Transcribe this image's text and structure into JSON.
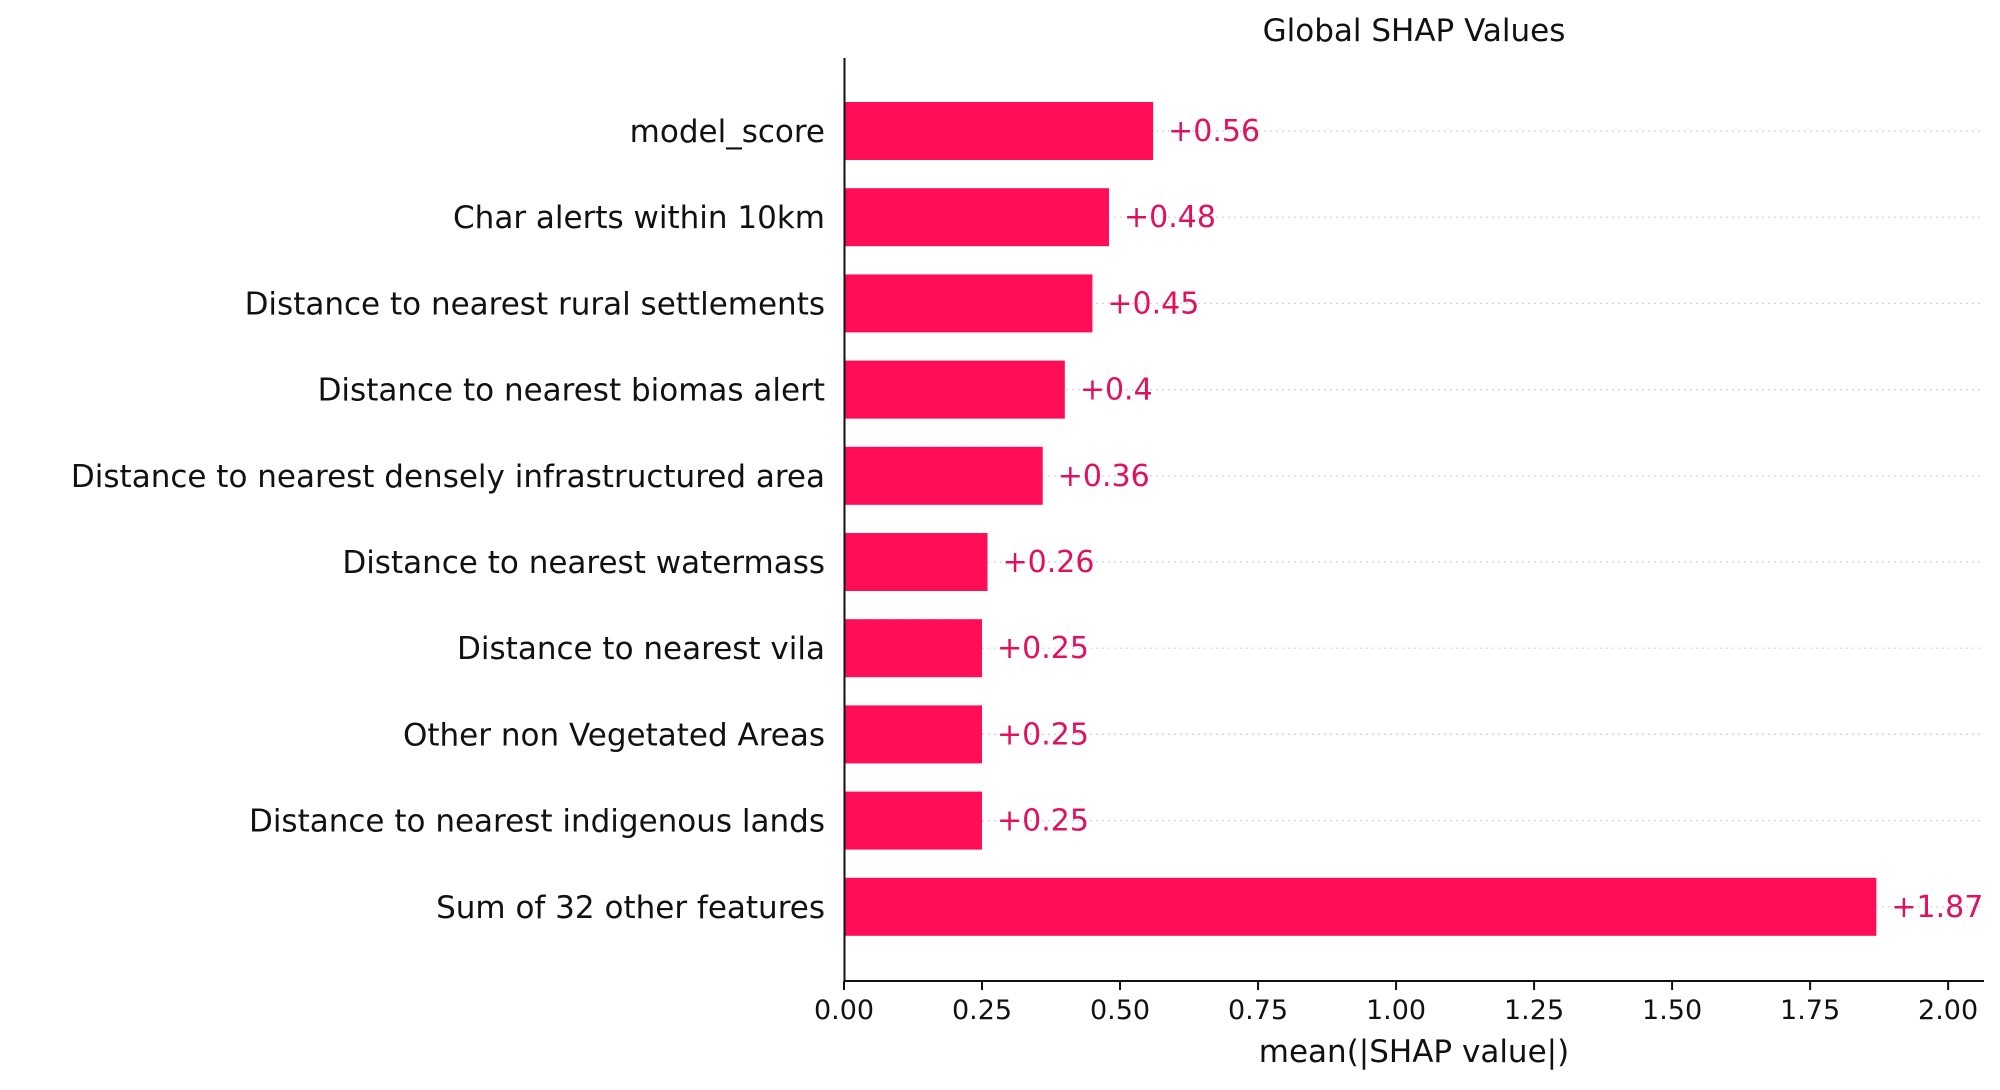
{
  "chart_data": {
    "type": "bar",
    "orientation": "horizontal",
    "title": "Global SHAP Values",
    "xlabel": "mean(|SHAP value|)",
    "ylabel": "",
    "xlim": [
      0,
      2.065
    ],
    "x_ticks": [
      0.0,
      0.25,
      0.5,
      0.75,
      1.0,
      1.25,
      1.5,
      1.75,
      2.0
    ],
    "x_tick_labels": [
      "0.00",
      "0.25",
      "0.50",
      "0.75",
      "1.00",
      "1.25",
      "1.50",
      "1.75",
      "2.00"
    ],
    "categories": [
      "model_score",
      "Char alerts within 10km",
      "Distance to nearest rural settlements",
      "Distance to nearest biomas alert",
      "Distance to nearest densely infrastructured area",
      "Distance to nearest watermass",
      "Distance to nearest vila",
      "Other non Vegetated Areas",
      "Distance to nearest indigenous lands",
      "Sum of 32 other features"
    ],
    "values": [
      0.56,
      0.48,
      0.45,
      0.4,
      0.36,
      0.26,
      0.25,
      0.25,
      0.25,
      1.87
    ],
    "value_labels": [
      "+0.56",
      "+0.48",
      "+0.45",
      "+0.4",
      "+0.36",
      "+0.26",
      "+0.25",
      "+0.25",
      "+0.25",
      "+1.87"
    ],
    "bar_color": "#ff0d57",
    "label_color": "#e0115f",
    "grid": "dotted horizontal guide lines per row"
  }
}
